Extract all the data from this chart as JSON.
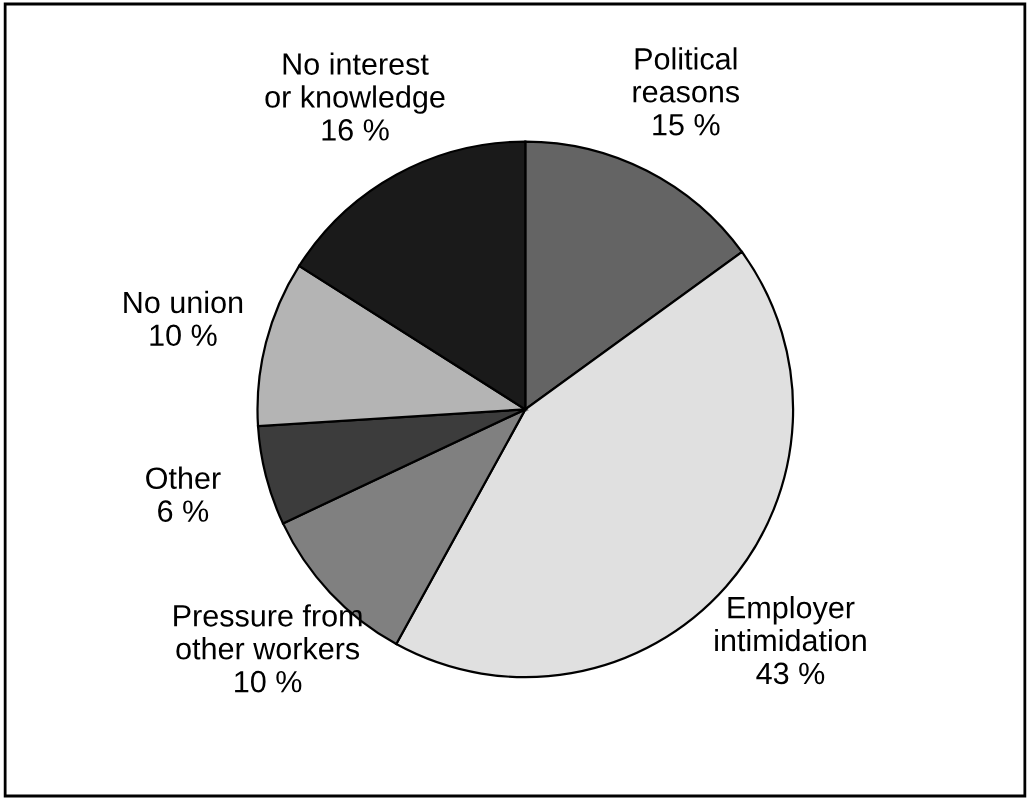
{
  "chart_data": {
    "type": "pie",
    "categories": [
      "Political\nreasons",
      "Employer\nintimidation",
      "Pressure from\nother workers",
      "Other",
      "No union",
      "No interest\nor knowledge"
    ],
    "values": [
      15,
      43,
      10,
      6,
      10,
      16
    ],
    "value_labels": [
      "15 %",
      "43 %",
      "10 %",
      "6 %",
      "10 %",
      "16 %"
    ],
    "colors": [
      "#646464",
      "#e0e0e0",
      "#808080",
      "#3c3c3c",
      "#b4b4b4",
      "#1a1a1a"
    ]
  }
}
